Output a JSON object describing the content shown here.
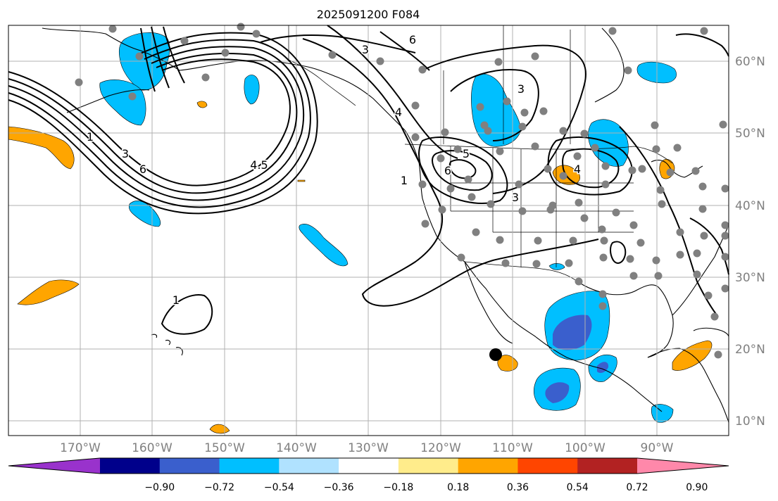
{
  "title": "2025091200 F084",
  "lat_labels": [
    "60°N",
    "50°N",
    "40°N",
    "30°N",
    "20°N",
    "10°N"
  ],
  "lon_labels": [
    "170°W",
    "160°W",
    "150°W",
    "140°W",
    "130°W",
    "120°W",
    "110°W",
    "100°W",
    "90°W"
  ],
  "colorbar": {
    "tick_labels": [
      "−0.90",
      "−0.72",
      "−0.54",
      "−0.36",
      "−0.18",
      "0.18",
      "0.36",
      "0.54",
      "0.72",
      "0.90"
    ],
    "colors": [
      "#9932cc",
      "#00008b",
      "#3a5fcd",
      "#00bfff",
      "#b0e2ff",
      "#ffffff",
      "#ffec8b",
      "#ffa500",
      "#ff4500",
      "#b22222",
      "#ff88aa"
    ]
  },
  "contour_labels": [
    "1",
    "3",
    "5",
    "6",
    "4.5",
    "6",
    "3",
    "1",
    "4",
    "5",
    "6",
    "3",
    "3",
    "4",
    "1"
  ],
  "marker": {
    "label": "point",
    "color": "#000000"
  },
  "station_color": "#808080"
}
